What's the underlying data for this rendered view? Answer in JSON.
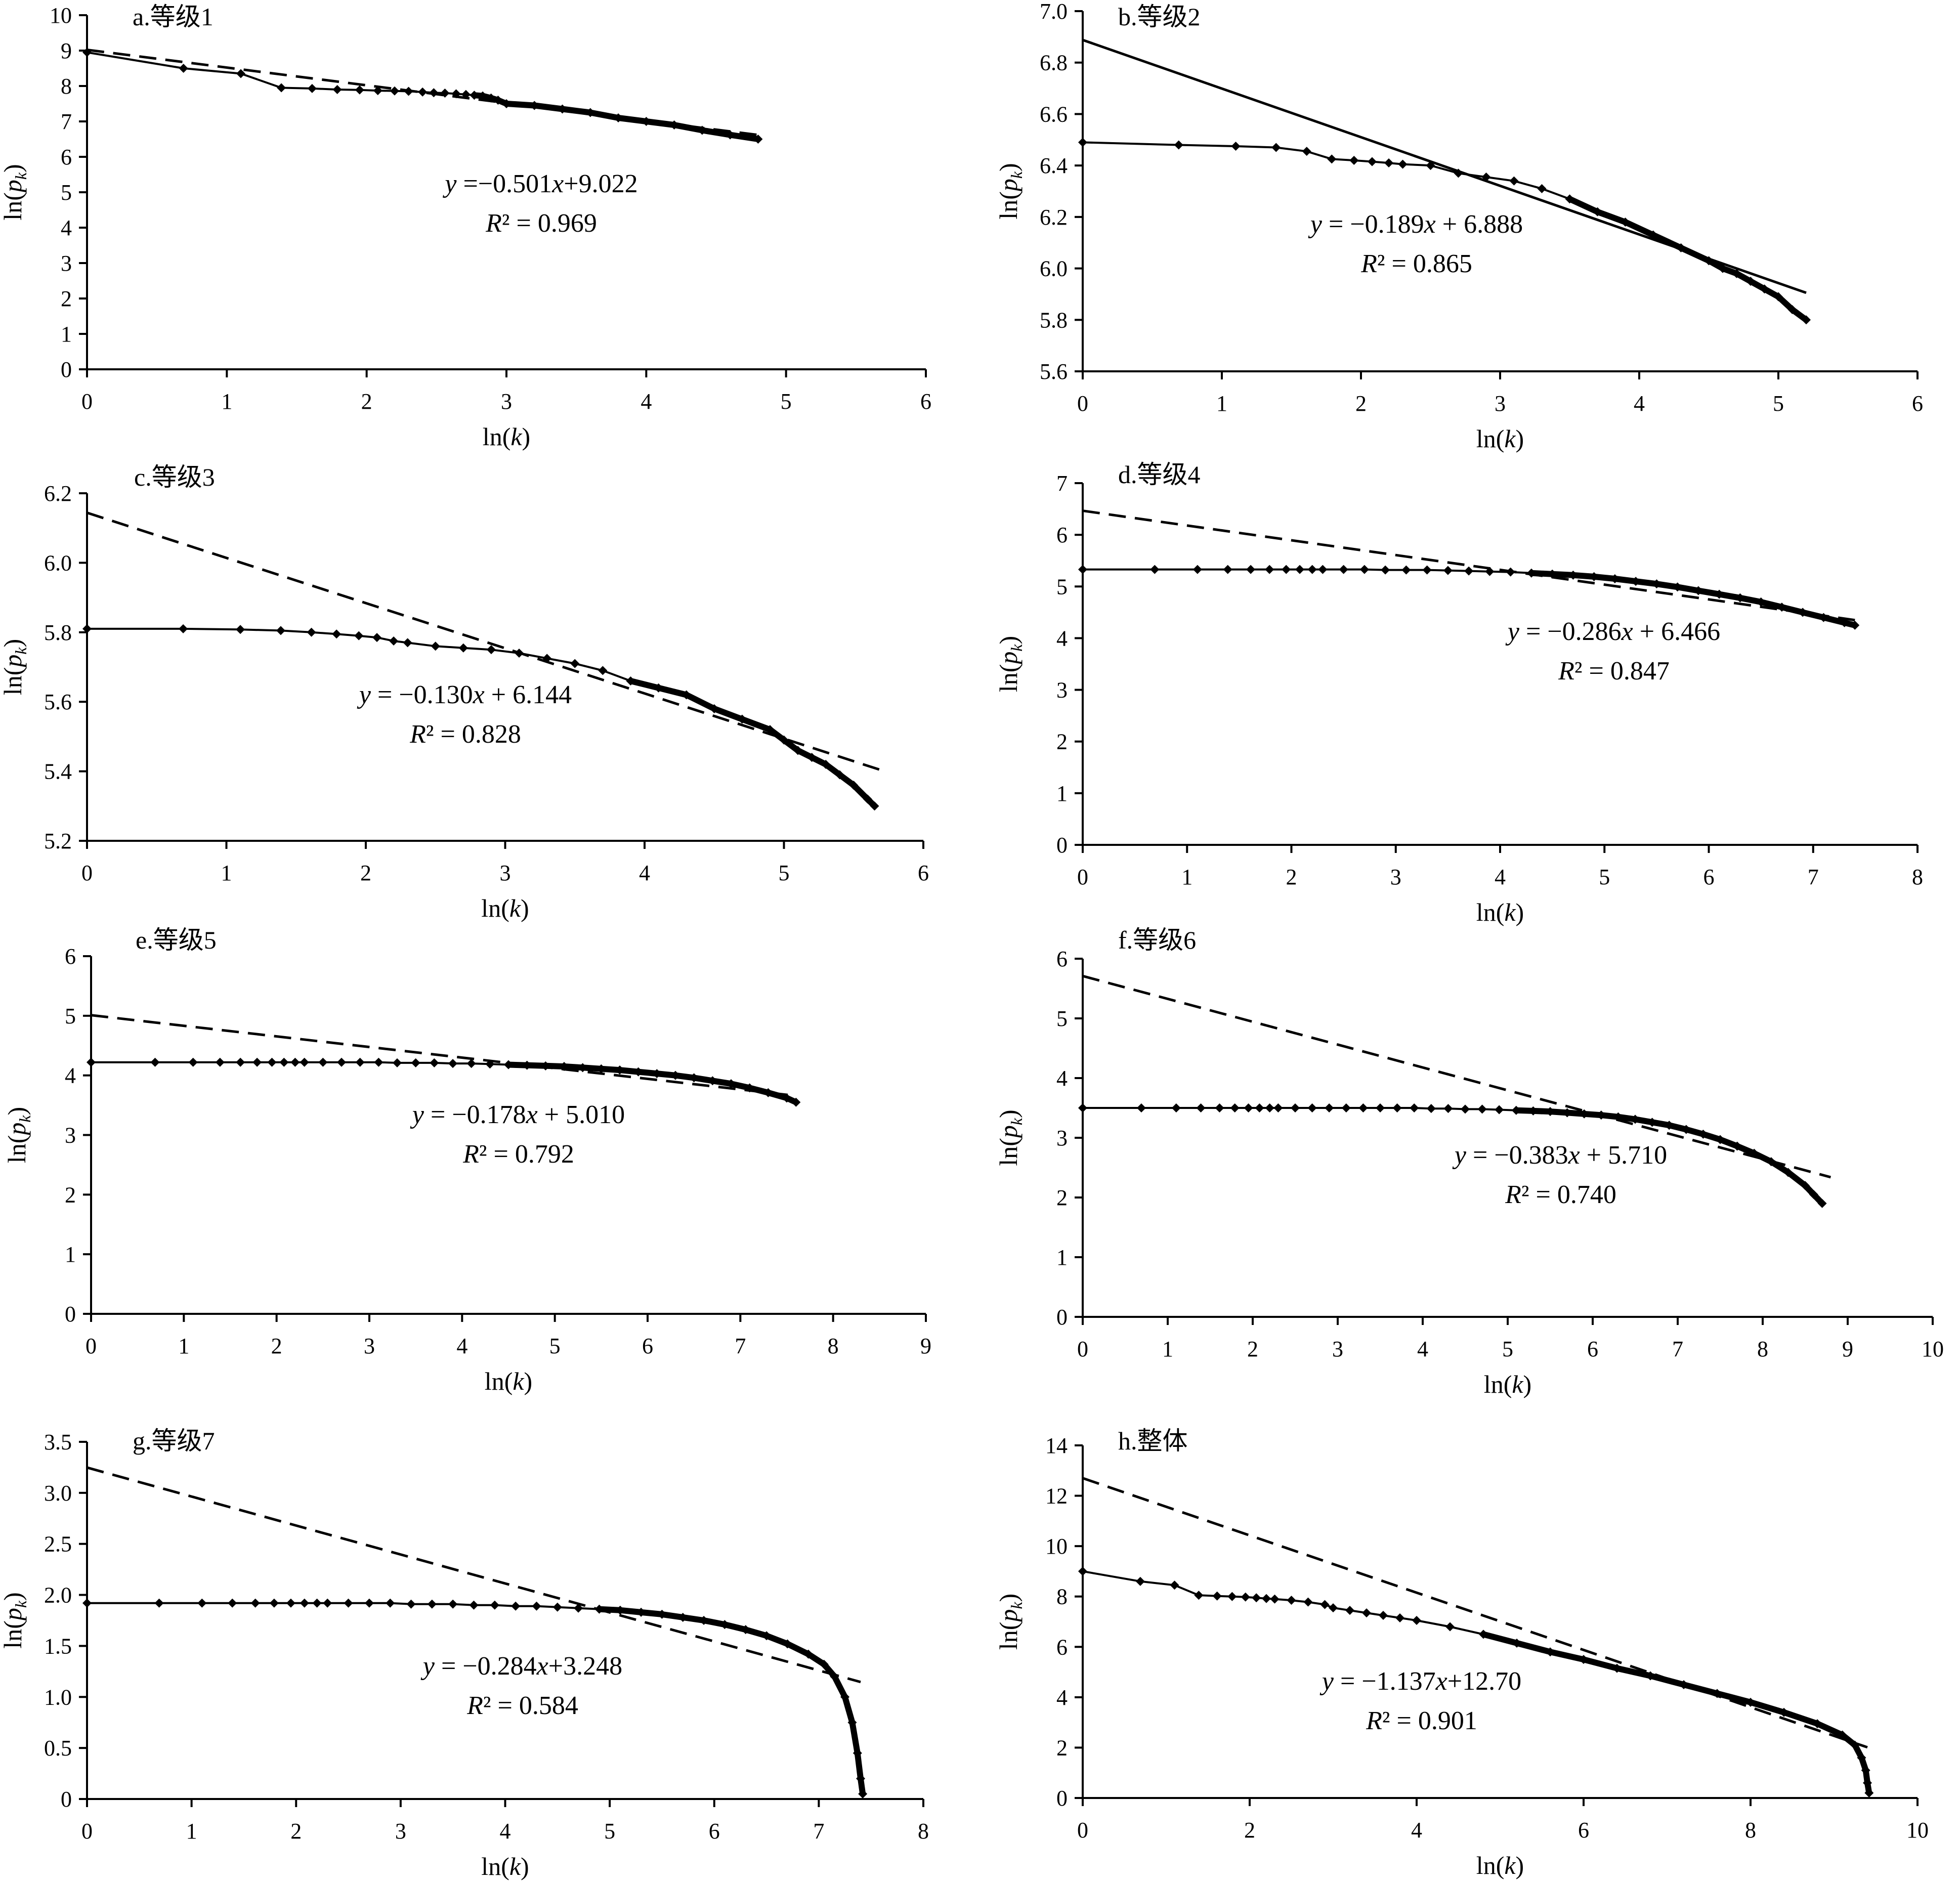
{
  "chart_data": [
    {
      "type": "line",
      "title": "a.等级1",
      "xlabel": "ln(k)",
      "ylabel": "ln(p_k)",
      "xlim": [
        0,
        6
      ],
      "ylim": [
        0,
        10
      ],
      "xticks": [
        "0",
        "1",
        "2",
        "3",
        "4",
        "5",
        "6"
      ],
      "yticks": [
        "0",
        "1",
        "2",
        "3",
        "4",
        "5",
        "6",
        "7",
        "8",
        "9",
        "10"
      ],
      "fit_style": "dashed",
      "equation": "y =−0.501x+9.022",
      "r2": "R² = 0.969",
      "fit": {
        "slope": -0.501,
        "intercept": 9.022,
        "x_range": [
          0,
          4.8
        ]
      },
      "series": [
        {
          "x": [
            0,
            0.69,
            1.1,
            1.39,
            1.61,
            1.79,
            1.95,
            2.08,
            2.2,
            2.3,
            2.4,
            2.48,
            2.56,
            2.64,
            2.71,
            2.77,
            2.83,
            2.89,
            2.94,
            3.0,
            3.2,
            3.4,
            3.6,
            3.8,
            4.0,
            4.2,
            4.4,
            4.6,
            4.8
          ],
          "y": [
            8.95,
            8.5,
            8.35,
            7.95,
            7.93,
            7.9,
            7.89,
            7.87,
            7.86,
            7.85,
            7.83,
            7.81,
            7.8,
            7.78,
            7.76,
            7.74,
            7.72,
            7.66,
            7.6,
            7.5,
            7.45,
            7.35,
            7.25,
            7.1,
            7.0,
            6.9,
            6.75,
            6.62,
            6.5
          ]
        }
      ]
    },
    {
      "type": "line",
      "title": "b.等级2",
      "xlabel": "ln(k)",
      "ylabel": "ln(p_k)",
      "xlim": [
        0,
        6
      ],
      "ylim": [
        5.6,
        7.0
      ],
      "xticks": [
        "0",
        "1",
        "2",
        "3",
        "4",
        "5",
        "6"
      ],
      "yticks": [
        "5.6",
        "5.8",
        "6.0",
        "6.2",
        "6.4",
        "6.6",
        "6.8",
        "7.0"
      ],
      "fit_style": "solid",
      "equation": "y = −0.189x + 6.888",
      "r2": "R² = 0.865",
      "fit": {
        "slope": -0.189,
        "intercept": 6.888,
        "x_range": [
          0,
          5.2
        ]
      },
      "series": [
        {
          "x": [
            0,
            0.69,
            1.1,
            1.39,
            1.61,
            1.79,
            1.95,
            2.08,
            2.2,
            2.3,
            2.5,
            2.7,
            2.9,
            3.1,
            3.3,
            3.5,
            3.7,
            3.9,
            4.1,
            4.3,
            4.5,
            4.6,
            4.7,
            4.8,
            4.9,
            5.0,
            5.1,
            5.2
          ],
          "y": [
            6.49,
            6.48,
            6.475,
            6.47,
            6.455,
            6.425,
            6.42,
            6.415,
            6.41,
            6.405,
            6.4,
            6.37,
            6.355,
            6.34,
            6.31,
            6.27,
            6.22,
            6.18,
            6.13,
            6.08,
            6.03,
            6.0,
            5.98,
            5.95,
            5.92,
            5.89,
            5.84,
            5.8
          ]
        }
      ]
    },
    {
      "type": "line",
      "title": "c.等级3",
      "xlabel": "ln(k)",
      "ylabel": "ln(p_k)",
      "xlim": [
        0,
        6
      ],
      "ylim": [
        5.2,
        6.2
      ],
      "xticks": [
        "0",
        "1",
        "2",
        "3",
        "4",
        "5",
        "6"
      ],
      "yticks": [
        "5.2",
        "5.4",
        "5.6",
        "5.8",
        "6.0",
        "6.2"
      ],
      "fit_style": "dashed",
      "equation": "y = −0.130x + 6.144",
      "r2": "R² = 0.828",
      "fit": {
        "slope": -0.13,
        "intercept": 6.144,
        "x_range": [
          0,
          5.7
        ]
      },
      "series": [
        {
          "x": [
            0,
            0.69,
            1.1,
            1.39,
            1.61,
            1.79,
            1.95,
            2.08,
            2.2,
            2.3,
            2.5,
            2.7,
            2.9,
            3.1,
            3.3,
            3.5,
            3.7,
            3.9,
            4.1,
            4.3,
            4.5,
            4.7,
            4.9,
            5.0,
            5.1,
            5.2,
            5.3,
            5.4,
            5.5,
            5.6,
            5.65
          ],
          "y": [
            5.81,
            5.81,
            5.808,
            5.805,
            5.8,
            5.795,
            5.79,
            5.785,
            5.775,
            5.77,
            5.76,
            5.755,
            5.75,
            5.74,
            5.725,
            5.71,
            5.69,
            5.66,
            5.64,
            5.62,
            5.58,
            5.55,
            5.52,
            5.49,
            5.46,
            5.44,
            5.42,
            5.39,
            5.36,
            5.32,
            5.3
          ]
        }
      ]
    },
    {
      "type": "line",
      "title": "d.等级4",
      "xlabel": "ln(k)",
      "ylabel": "ln(p_k)",
      "xlim": [
        0,
        8
      ],
      "ylim": [
        0,
        7
      ],
      "xticks": [
        "0",
        "1",
        "2",
        "3",
        "4",
        "5",
        "6",
        "7",
        "8"
      ],
      "yticks": [
        "0",
        "1",
        "2",
        "3",
        "4",
        "5",
        "6",
        "7"
      ],
      "fit_style": "dashed",
      "equation": "y = −0.286x + 6.466",
      "r2": "R² = 0.847",
      "fit": {
        "slope": -0.286,
        "intercept": 6.466,
        "x_range": [
          0,
          7.4
        ]
      },
      "series": [
        {
          "x": [
            0,
            0.69,
            1.1,
            1.39,
            1.61,
            1.79,
            1.95,
            2.08,
            2.2,
            2.3,
            2.5,
            2.7,
            2.9,
            3.1,
            3.3,
            3.5,
            3.7,
            3.9,
            4.1,
            4.3,
            4.5,
            4.7,
            4.9,
            5.1,
            5.3,
            5.5,
            5.7,
            5.9,
            6.1,
            6.3,
            6.5,
            6.7,
            6.9,
            7.1,
            7.3,
            7.4
          ],
          "y": [
            5.33,
            5.33,
            5.33,
            5.33,
            5.33,
            5.33,
            5.33,
            5.33,
            5.33,
            5.33,
            5.33,
            5.33,
            5.32,
            5.32,
            5.32,
            5.31,
            5.3,
            5.29,
            5.28,
            5.26,
            5.24,
            5.22,
            5.19,
            5.15,
            5.1,
            5.05,
            4.99,
            4.92,
            4.85,
            4.78,
            4.7,
            4.6,
            4.5,
            4.4,
            4.3,
            4.25
          ]
        }
      ]
    },
    {
      "type": "line",
      "title": "e.等级5",
      "xlabel": "ln(k)",
      "ylabel": "ln(p_k)",
      "xlim": [
        0,
        9
      ],
      "ylim": [
        0,
        6
      ],
      "xticks": [
        "0",
        "1",
        "2",
        "3",
        "4",
        "5",
        "6",
        "7",
        "8",
        "9"
      ],
      "yticks": [
        "0",
        "1",
        "2",
        "3",
        "4",
        "5",
        "6"
      ],
      "fit_style": "dashed",
      "equation": "y = −0.178x + 5.010",
      "r2": "R² = 0.792",
      "fit": {
        "slope": -0.178,
        "intercept": 5.01,
        "x_range": [
          0,
          7.6
        ]
      },
      "series": [
        {
          "x": [
            0,
            0.69,
            1.1,
            1.39,
            1.61,
            1.79,
            1.95,
            2.08,
            2.2,
            2.3,
            2.5,
            2.7,
            2.9,
            3.1,
            3.3,
            3.5,
            3.7,
            3.9,
            4.1,
            4.3,
            4.5,
            4.7,
            4.9,
            5.1,
            5.3,
            5.5,
            5.7,
            5.9,
            6.1,
            6.3,
            6.5,
            6.7,
            6.9,
            7.1,
            7.3,
            7.5,
            7.6
          ],
          "y": [
            4.22,
            4.22,
            4.22,
            4.22,
            4.22,
            4.22,
            4.22,
            4.22,
            4.22,
            4.22,
            4.22,
            4.22,
            4.22,
            4.22,
            4.21,
            4.21,
            4.21,
            4.2,
            4.2,
            4.19,
            4.18,
            4.17,
            4.16,
            4.15,
            4.13,
            4.11,
            4.09,
            4.06,
            4.03,
            4.0,
            3.96,
            3.91,
            3.86,
            3.79,
            3.71,
            3.62,
            3.55
          ]
        }
      ]
    },
    {
      "type": "line",
      "title": "f.等级6",
      "xlabel": "ln(k)",
      "ylabel": "ln(p_k)",
      "xlim": [
        0,
        10
      ],
      "ylim": [
        0,
        6
      ],
      "xticks": [
        "0",
        "1",
        "2",
        "3",
        "4",
        "5",
        "6",
        "7",
        "8",
        "9",
        "10"
      ],
      "yticks": [
        "0",
        "1",
        "2",
        "3",
        "4",
        "5",
        "6"
      ],
      "fit_style": "dashed",
      "equation": "y = −0.383x + 5.710",
      "r2": "R² = 0.740",
      "fit": {
        "slope": -0.383,
        "intercept": 5.71,
        "x_range": [
          0,
          8.8
        ]
      },
      "series": [
        {
          "x": [
            0,
            0.69,
            1.1,
            1.39,
            1.61,
            1.79,
            1.95,
            2.08,
            2.2,
            2.3,
            2.5,
            2.7,
            2.9,
            3.1,
            3.3,
            3.5,
            3.7,
            3.9,
            4.1,
            4.3,
            4.5,
            4.7,
            4.9,
            5.1,
            5.3,
            5.5,
            5.7,
            5.9,
            6.1,
            6.3,
            6.5,
            6.7,
            6.9,
            7.1,
            7.3,
            7.5,
            7.7,
            7.9,
            8.1,
            8.3,
            8.5,
            8.6,
            8.7
          ],
          "y": [
            3.5,
            3.5,
            3.5,
            3.5,
            3.5,
            3.5,
            3.5,
            3.5,
            3.5,
            3.5,
            3.5,
            3.5,
            3.5,
            3.5,
            3.5,
            3.5,
            3.5,
            3.5,
            3.49,
            3.49,
            3.48,
            3.48,
            3.47,
            3.46,
            3.45,
            3.44,
            3.42,
            3.4,
            3.38,
            3.35,
            3.31,
            3.26,
            3.21,
            3.14,
            3.06,
            2.97,
            2.86,
            2.74,
            2.6,
            2.42,
            2.2,
            2.05,
            1.9
          ]
        }
      ]
    },
    {
      "type": "line",
      "title": "g.等级7",
      "xlabel": "ln(k)",
      "ylabel": "ln(p_k)",
      "xlim": [
        0,
        8
      ],
      "ylim": [
        0,
        3.5
      ],
      "xticks": [
        "0",
        "1",
        "2",
        "3",
        "4",
        "5",
        "6",
        "7",
        "8"
      ],
      "yticks": [
        "0",
        "0.5",
        "1.0",
        "1.5",
        "2.0",
        "2.5",
        "3.0",
        "3.5"
      ],
      "fit_style": "dashed",
      "equation": "y = −0.284x+3.248",
      "r2": "R² = 0.584",
      "fit": {
        "slope": -0.284,
        "intercept": 3.248,
        "x_range": [
          0,
          7.4
        ]
      },
      "series": [
        {
          "x": [
            0,
            0.69,
            1.1,
            1.39,
            1.61,
            1.79,
            1.95,
            2.08,
            2.2,
            2.3,
            2.5,
            2.7,
            2.9,
            3.1,
            3.3,
            3.5,
            3.7,
            3.9,
            4.1,
            4.3,
            4.5,
            4.7,
            4.9,
            5.1,
            5.3,
            5.5,
            5.7,
            5.9,
            6.1,
            6.3,
            6.5,
            6.7,
            6.9,
            7.05,
            7.15,
            7.25,
            7.32,
            7.37,
            7.4,
            7.42
          ],
          "y": [
            1.92,
            1.92,
            1.92,
            1.92,
            1.92,
            1.92,
            1.92,
            1.92,
            1.92,
            1.92,
            1.92,
            1.92,
            1.92,
            1.91,
            1.91,
            1.91,
            1.9,
            1.9,
            1.89,
            1.89,
            1.88,
            1.87,
            1.86,
            1.85,
            1.83,
            1.81,
            1.78,
            1.75,
            1.71,
            1.66,
            1.6,
            1.52,
            1.42,
            1.32,
            1.2,
            1.0,
            0.75,
            0.45,
            0.2,
            0.05
          ]
        }
      ]
    },
    {
      "type": "line",
      "title": "h.整体",
      "xlabel": "ln(k)",
      "ylabel": "ln(p_k)",
      "xlim": [
        0,
        10
      ],
      "ylim": [
        0,
        14
      ],
      "xticks": [
        "0",
        "2",
        "4",
        "6",
        "8",
        "10"
      ],
      "yticks": [
        "0",
        "2",
        "4",
        "6",
        "8",
        "10",
        "12",
        "14"
      ],
      "fit_style": "dashed",
      "equation": "y = −1.137x+12.70",
      "r2": "R² = 0.901",
      "fit": {
        "slope": -1.137,
        "intercept": 12.7,
        "x_range": [
          0,
          9.4
        ]
      },
      "series": [
        {
          "x": [
            0,
            0.69,
            1.1,
            1.39,
            1.61,
            1.79,
            1.95,
            2.08,
            2.2,
            2.3,
            2.5,
            2.7,
            2.9,
            3.0,
            3.2,
            3.4,
            3.6,
            3.8,
            4.0,
            4.4,
            4.8,
            5.2,
            5.6,
            6.0,
            6.4,
            6.8,
            7.2,
            7.6,
            8.0,
            8.4,
            8.8,
            9.1,
            9.25,
            9.33,
            9.38,
            9.4,
            9.42
          ],
          "y": [
            9.0,
            8.6,
            8.45,
            8.05,
            8.02,
            8.0,
            7.98,
            7.95,
            7.92,
            7.9,
            7.85,
            7.78,
            7.68,
            7.55,
            7.45,
            7.35,
            7.25,
            7.15,
            7.05,
            6.8,
            6.5,
            6.15,
            5.8,
            5.5,
            5.15,
            4.85,
            4.5,
            4.15,
            3.8,
            3.4,
            2.95,
            2.5,
            2.1,
            1.6,
            1.1,
            0.6,
            0.2
          ]
        }
      ]
    }
  ]
}
